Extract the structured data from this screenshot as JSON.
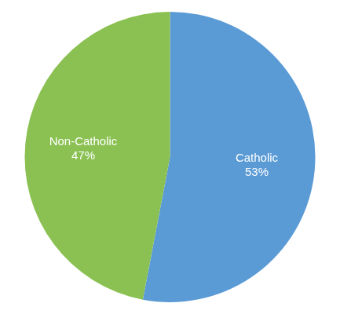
{
  "chart_data": {
    "type": "pie",
    "categories": [
      "Catholic",
      "Non-Catholic"
    ],
    "values": [
      53,
      47
    ],
    "value_labels": [
      "53%",
      "47%"
    ],
    "colors": [
      "#5b9bd5",
      "#8bc152"
    ],
    "data_labels": true
  }
}
